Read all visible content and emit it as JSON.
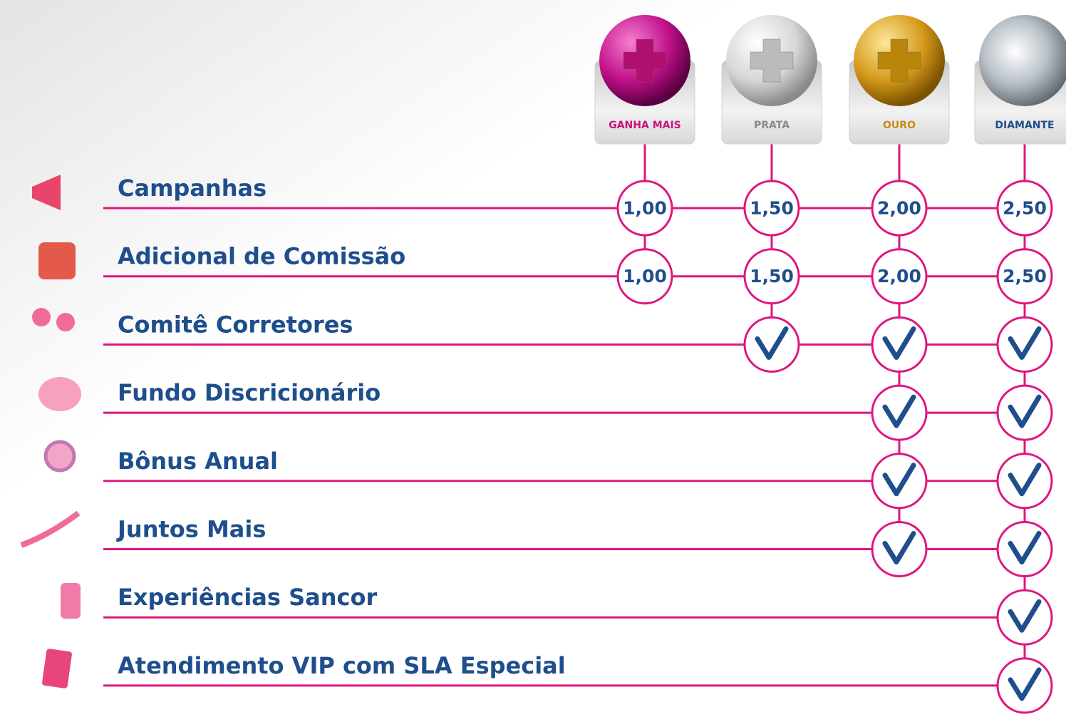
{
  "tiers": [
    {
      "label": "GANHA MAIS",
      "color": "#c8137d"
    },
    {
      "label": "PRATA",
      "color": "#8a8a8a"
    },
    {
      "label": "OURO",
      "color": "#c98a10"
    },
    {
      "label": "DIAMANTE",
      "color": "#1f4e8c"
    }
  ],
  "rows": [
    {
      "label": "Campanhas",
      "cells": [
        "1,00",
        "1,50",
        "2,00",
        "2,50"
      ]
    },
    {
      "label": "Adicional de Comissão",
      "cells": [
        "1,00",
        "1,50",
        "2,00",
        "2,50"
      ]
    },
    {
      "label": "Comitê Corretores",
      "cells": [
        false,
        true,
        true,
        true
      ]
    },
    {
      "label": "Fundo Discricionário",
      "cells": [
        false,
        false,
        true,
        true
      ]
    },
    {
      "label": "Bônus Anual",
      "cells": [
        false,
        false,
        true,
        true
      ]
    },
    {
      "label": "Juntos Mais",
      "cells": [
        false,
        false,
        true,
        true
      ]
    },
    {
      "label": "Experiências Sancor",
      "cells": [
        false,
        false,
        false,
        true
      ]
    },
    {
      "label": "Atendimento VIP com SLA Especial",
      "cells": [
        false,
        false,
        false,
        true
      ]
    }
  ]
}
